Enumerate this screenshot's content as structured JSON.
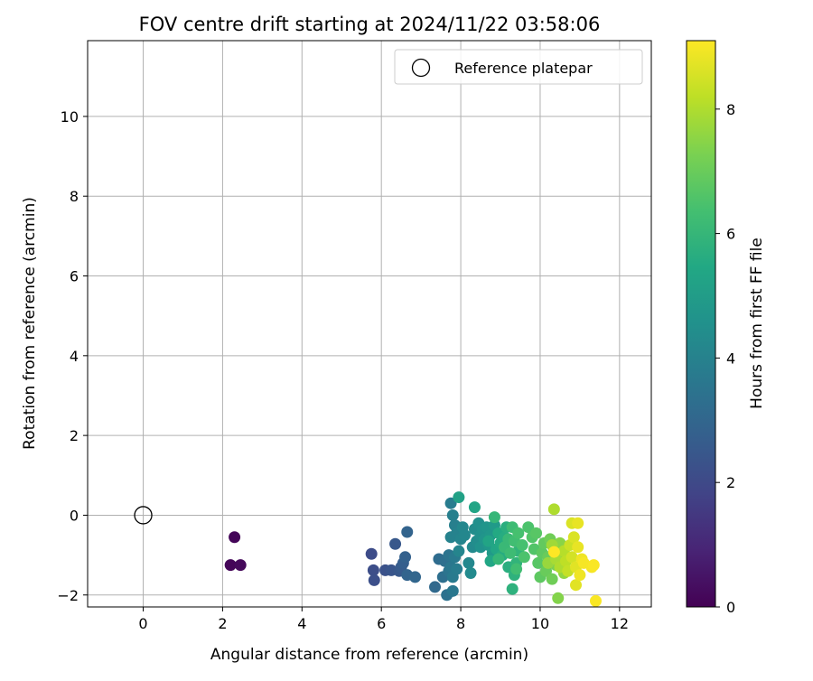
{
  "chart_data": {
    "type": "scatter",
    "title": "FOV centre drift starting at 2024/11/22 03:58:06",
    "xlabel": "Angular distance from reference (arcmin)",
    "ylabel": "Rotation from reference (arcmin)",
    "xlim": [
      -1.4,
      12.8
    ],
    "ylim": [
      -2.3,
      11.9
    ],
    "xticks": [
      0,
      2,
      4,
      6,
      8,
      10,
      12
    ],
    "yticks": [
      -2,
      0,
      2,
      4,
      6,
      8,
      10
    ],
    "grid": true,
    "legend": {
      "location": "upper right",
      "entries": [
        "Reference platepar"
      ]
    },
    "reference_point": {
      "x": 0,
      "y": 0,
      "label": "Reference platepar",
      "marker": "open-circle"
    },
    "colorbar": {
      "label": "Hours from first FF file",
      "colormap": "viridis",
      "range": [
        0,
        9.1
      ],
      "ticks": [
        0,
        2,
        4,
        6,
        8
      ]
    },
    "points": [
      {
        "x": 2.3,
        "y": -0.55,
        "c": 0.1
      },
      {
        "x": 2.2,
        "y": -1.25,
        "c": 0.1
      },
      {
        "x": 2.45,
        "y": -1.25,
        "c": 0.2
      },
      {
        "x": 5.75,
        "y": -0.97,
        "c": 2.1
      },
      {
        "x": 5.8,
        "y": -1.38,
        "c": 2.15
      },
      {
        "x": 5.82,
        "y": -1.63,
        "c": 2.2
      },
      {
        "x": 6.1,
        "y": -1.38,
        "c": 2.3
      },
      {
        "x": 6.25,
        "y": -1.38,
        "c": 2.4
      },
      {
        "x": 6.35,
        "y": -0.72,
        "c": 2.5
      },
      {
        "x": 6.45,
        "y": -1.4,
        "c": 2.5
      },
      {
        "x": 6.5,
        "y": -1.3,
        "c": 2.6
      },
      {
        "x": 6.55,
        "y": -1.2,
        "c": 2.7
      },
      {
        "x": 6.6,
        "y": -1.05,
        "c": 2.8
      },
      {
        "x": 6.65,
        "y": -0.42,
        "c": 2.9
      },
      {
        "x": 6.65,
        "y": -1.5,
        "c": 2.9
      },
      {
        "x": 6.85,
        "y": -1.55,
        "c": 3.0
      },
      {
        "x": 7.35,
        "y": -1.8,
        "c": 3.1
      },
      {
        "x": 7.45,
        "y": -1.1,
        "c": 3.2
      },
      {
        "x": 7.55,
        "y": -1.55,
        "c": 3.3
      },
      {
        "x": 7.6,
        "y": -1.15,
        "c": 3.3
      },
      {
        "x": 7.65,
        "y": -2.0,
        "c": 3.4
      },
      {
        "x": 7.7,
        "y": -1.0,
        "c": 3.5
      },
      {
        "x": 7.7,
        "y": -1.4,
        "c": 3.5
      },
      {
        "x": 7.75,
        "y": -1.3,
        "c": 3.6
      },
      {
        "x": 7.8,
        "y": -1.9,
        "c": 3.6
      },
      {
        "x": 7.8,
        "y": -1.55,
        "c": 3.7
      },
      {
        "x": 7.85,
        "y": -1.05,
        "c": 3.7
      },
      {
        "x": 7.9,
        "y": -1.35,
        "c": 3.8
      },
      {
        "x": 7.75,
        "y": 0.3,
        "c": 3.8
      },
      {
        "x": 7.8,
        "y": 0.0,
        "c": 3.9
      },
      {
        "x": 7.85,
        "y": -0.25,
        "c": 3.9
      },
      {
        "x": 7.75,
        "y": -0.55,
        "c": 4.0
      },
      {
        "x": 7.9,
        "y": -0.45,
        "c": 4.0
      },
      {
        "x": 7.95,
        "y": -0.9,
        "c": 4.1
      },
      {
        "x": 8.0,
        "y": -0.6,
        "c": 4.1
      },
      {
        "x": 8.05,
        "y": -0.3,
        "c": 4.2
      },
      {
        "x": 8.1,
        "y": -0.5,
        "c": 4.2
      },
      {
        "x": 8.2,
        "y": -1.2,
        "c": 4.2
      },
      {
        "x": 8.25,
        "y": -1.45,
        "c": 4.3
      },
      {
        "x": 8.3,
        "y": -0.8,
        "c": 4.3
      },
      {
        "x": 8.35,
        "y": -0.35,
        "c": 4.4
      },
      {
        "x": 8.4,
        "y": -0.65,
        "c": 4.4
      },
      {
        "x": 8.45,
        "y": -0.2,
        "c": 4.5
      },
      {
        "x": 8.5,
        "y": -0.5,
        "c": 4.5
      },
      {
        "x": 8.5,
        "y": -0.8,
        "c": 4.6
      },
      {
        "x": 8.55,
        "y": -0.35,
        "c": 4.6
      },
      {
        "x": 8.6,
        "y": -0.6,
        "c": 4.7
      },
      {
        "x": 8.65,
        "y": -0.3,
        "c": 4.7
      },
      {
        "x": 8.7,
        "y": -0.75,
        "c": 4.8
      },
      {
        "x": 8.75,
        "y": -0.5,
        "c": 4.8
      },
      {
        "x": 8.8,
        "y": -0.95,
        "c": 4.9
      },
      {
        "x": 8.85,
        "y": -0.25,
        "c": 4.9
      },
      {
        "x": 7.95,
        "y": 0.45,
        "c": 5.2
      },
      {
        "x": 8.35,
        "y": 0.2,
        "c": 5.3
      },
      {
        "x": 8.7,
        "y": -0.65,
        "c": 5.3
      },
      {
        "x": 8.75,
        "y": -1.15,
        "c": 5.4
      },
      {
        "x": 8.9,
        "y": -0.85,
        "c": 5.4
      },
      {
        "x": 8.95,
        "y": -0.45,
        "c": 5.5
      },
      {
        "x": 9.0,
        "y": -0.7,
        "c": 5.5
      },
      {
        "x": 9.05,
        "y": -1.0,
        "c": 5.6
      },
      {
        "x": 9.1,
        "y": -0.55,
        "c": 5.6
      },
      {
        "x": 9.15,
        "y": -0.3,
        "c": 5.7
      },
      {
        "x": 9.2,
        "y": -1.3,
        "c": 5.7
      },
      {
        "x": 9.3,
        "y": -1.85,
        "c": 5.8
      },
      {
        "x": 9.35,
        "y": -1.5,
        "c": 5.8
      },
      {
        "x": 9.4,
        "y": -1.2,
        "c": 5.9
      },
      {
        "x": 9.45,
        "y": -0.9,
        "c": 5.9
      },
      {
        "x": 8.85,
        "y": -0.05,
        "c": 6.0
      },
      {
        "x": 8.95,
        "y": -1.1,
        "c": 6.0
      },
      {
        "x": 9.1,
        "y": -0.8,
        "c": 6.1
      },
      {
        "x": 9.2,
        "y": -0.6,
        "c": 6.1
      },
      {
        "x": 9.25,
        "y": -0.95,
        "c": 6.2
      },
      {
        "x": 9.3,
        "y": -0.3,
        "c": 6.2
      },
      {
        "x": 9.35,
        "y": -0.65,
        "c": 6.3
      },
      {
        "x": 9.4,
        "y": -1.35,
        "c": 6.3
      },
      {
        "x": 9.45,
        "y": -0.45,
        "c": 6.4
      },
      {
        "x": 9.55,
        "y": -0.75,
        "c": 6.4
      },
      {
        "x": 9.6,
        "y": -1.05,
        "c": 6.5
      },
      {
        "x": 9.7,
        "y": -0.3,
        "c": 6.5
      },
      {
        "x": 9.8,
        "y": -0.55,
        "c": 6.6
      },
      {
        "x": 9.85,
        "y": -0.85,
        "c": 6.6
      },
      {
        "x": 9.9,
        "y": -0.45,
        "c": 6.7
      },
      {
        "x": 9.95,
        "y": -1.2,
        "c": 6.7
      },
      {
        "x": 10.0,
        "y": -1.55,
        "c": 6.8
      },
      {
        "x": 10.05,
        "y": -0.95,
        "c": 6.8
      },
      {
        "x": 10.1,
        "y": -0.7,
        "c": 6.9
      },
      {
        "x": 10.15,
        "y": -1.4,
        "c": 7.0
      },
      {
        "x": 10.2,
        "y": -1.05,
        "c": 7.0
      },
      {
        "x": 10.25,
        "y": -0.6,
        "c": 7.1
      },
      {
        "x": 10.3,
        "y": -1.6,
        "c": 7.1
      },
      {
        "x": 10.35,
        "y": -0.85,
        "c": 7.2
      },
      {
        "x": 10.4,
        "y": -1.25,
        "c": 7.3
      },
      {
        "x": 10.45,
        "y": -2.08,
        "c": 7.4
      },
      {
        "x": 10.5,
        "y": -0.7,
        "c": 7.5
      },
      {
        "x": 10.55,
        "y": -1.0,
        "c": 7.5
      },
      {
        "x": 10.6,
        "y": -1.45,
        "c": 7.6
      },
      {
        "x": 10.2,
        "y": -1.2,
        "c": 7.7
      },
      {
        "x": 10.3,
        "y": -0.75,
        "c": 7.8
      },
      {
        "x": 10.4,
        "y": -1.1,
        "c": 7.9
      },
      {
        "x": 10.35,
        "y": 0.15,
        "c": 8.0
      },
      {
        "x": 10.5,
        "y": -1.3,
        "c": 8.0
      },
      {
        "x": 10.6,
        "y": -0.9,
        "c": 8.1
      },
      {
        "x": 10.65,
        "y": -1.15,
        "c": 8.2
      },
      {
        "x": 10.7,
        "y": -1.4,
        "c": 8.3
      },
      {
        "x": 10.75,
        "y": -0.75,
        "c": 8.4
      },
      {
        "x": 10.8,
        "y": -1.05,
        "c": 8.5
      },
      {
        "x": 10.8,
        "y": -0.2,
        "c": 8.6
      },
      {
        "x": 10.85,
        "y": -0.55,
        "c": 8.6
      },
      {
        "x": 10.9,
        "y": -1.3,
        "c": 8.7
      },
      {
        "x": 10.9,
        "y": -1.75,
        "c": 8.7
      },
      {
        "x": 10.95,
        "y": -0.2,
        "c": 8.8
      },
      {
        "x": 10.95,
        "y": -0.8,
        "c": 8.8
      },
      {
        "x": 11.0,
        "y": -1.5,
        "c": 8.9
      },
      {
        "x": 11.05,
        "y": -1.1,
        "c": 8.9
      },
      {
        "x": 11.1,
        "y": -1.2,
        "c": 9.0
      },
      {
        "x": 11.3,
        "y": -1.3,
        "c": 9.0
      },
      {
        "x": 11.35,
        "y": -1.25,
        "c": 9.05
      },
      {
        "x": 11.4,
        "y": -2.15,
        "c": 9.05
      },
      {
        "x": 10.35,
        "y": -0.92,
        "c": 9.1
      }
    ]
  }
}
